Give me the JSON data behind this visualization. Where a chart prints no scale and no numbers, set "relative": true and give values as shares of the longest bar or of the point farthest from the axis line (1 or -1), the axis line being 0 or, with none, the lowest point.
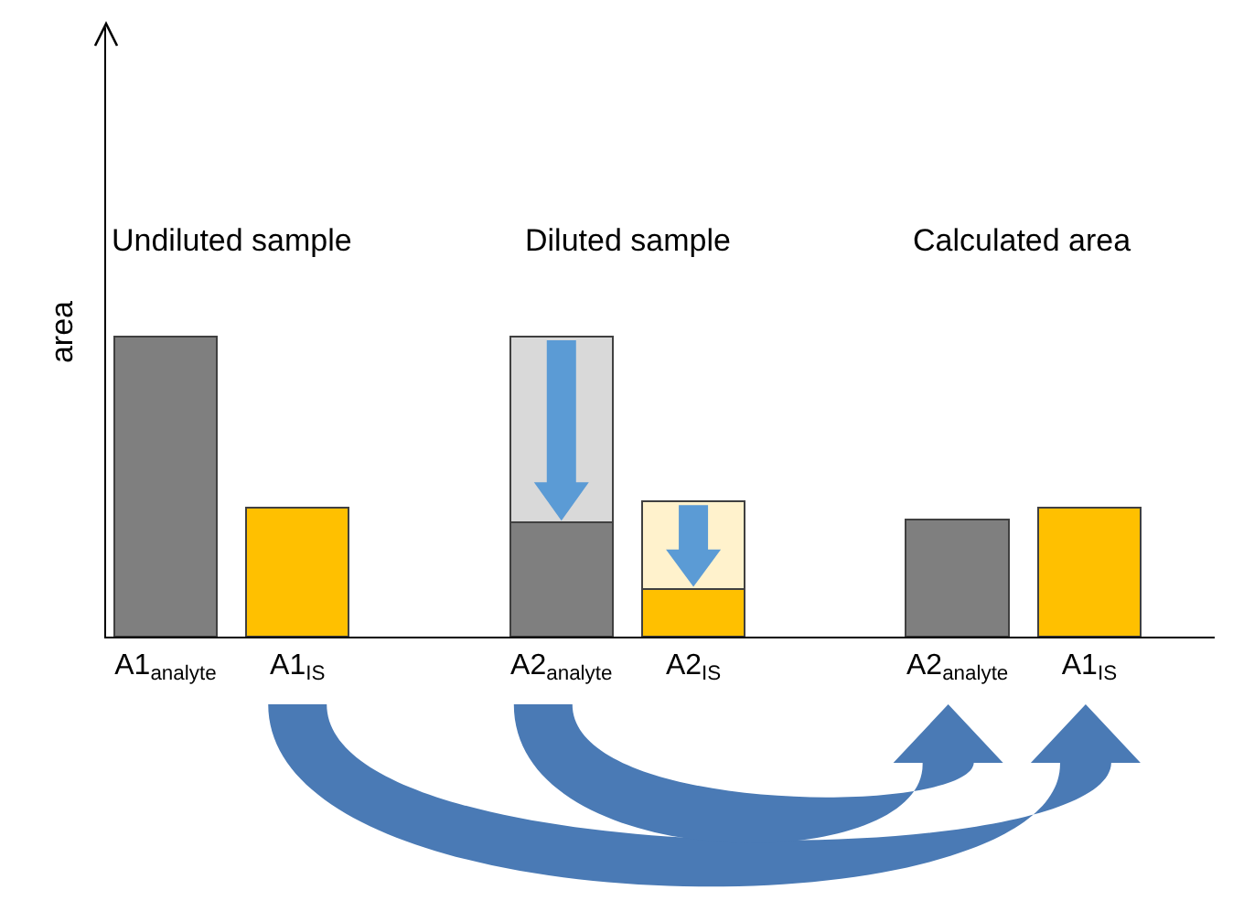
{
  "chart_data": {
    "type": "bar",
    "relative": true,
    "stacked": true,
    "ylabel": "area",
    "grid": false,
    "categories": [
      "A1$_{analyte}$",
      "A1$_{IS}$",
      null,
      "A2$_{analyte}$",
      "A2$_{IS}$",
      null,
      "A2$_{analyte}$",
      "A1$_{IS}$"
    ],
    "series": [
      {
        "colors": [
          "#7f7f7f",
          "#ffc000",
          null,
          "#7f7f7f",
          "#ffc000",
          null,
          "#7f7f7f",
          "#ffc000"
        ],
        "values": [
          1,
          0.43,
          null,
          0.38,
          0.16,
          null,
          0.39,
          0.43
        ]
      },
      {
        "colors": [
          null,
          null,
          null,
          "#d9d9d9",
          "#fff2cc",
          null,
          null,
          null
        ],
        "values": [
          null,
          null,
          null,
          0.62,
          0.29,
          null,
          null,
          null
        ]
      }
    ],
    "annotations": [
      "Undiluted sample",
      "Diluted sample",
      "Calculated area"
    ]
  }
}
